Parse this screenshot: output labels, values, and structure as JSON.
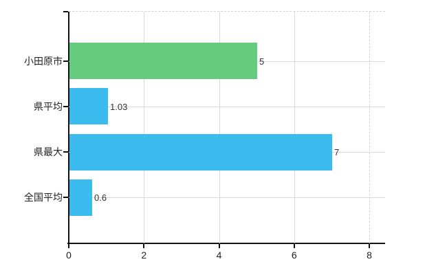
{
  "chart_data": {
    "type": "bar",
    "orientation": "horizontal",
    "title": "",
    "xlabel": "",
    "ylabel": "",
    "categories": [
      "小田原市",
      "県平均",
      "県最大",
      "全国平均"
    ],
    "values": [
      5,
      1.03,
      7,
      0.6
    ],
    "value_labels": [
      "5",
      "1.03",
      "7",
      "0.6"
    ],
    "bar_colors": [
      "#66cb7d",
      "#3cbcee",
      "#3cbcee",
      "#3cbcee"
    ],
    "xticks": [
      0,
      2,
      4,
      6,
      8
    ],
    "xtick_labels": [
      "0",
      "2",
      "4",
      "6",
      "8"
    ],
    "xlim": [
      0,
      8
    ],
    "grid": "on",
    "legend": "none",
    "colors": {
      "highlight_bar": "#66cb7d",
      "default_bar": "#3cbcee",
      "gridline": "#d9d9d9",
      "dashed_border": "#d2d2d2",
      "axis": "#111111",
      "text": "#222222"
    }
  }
}
